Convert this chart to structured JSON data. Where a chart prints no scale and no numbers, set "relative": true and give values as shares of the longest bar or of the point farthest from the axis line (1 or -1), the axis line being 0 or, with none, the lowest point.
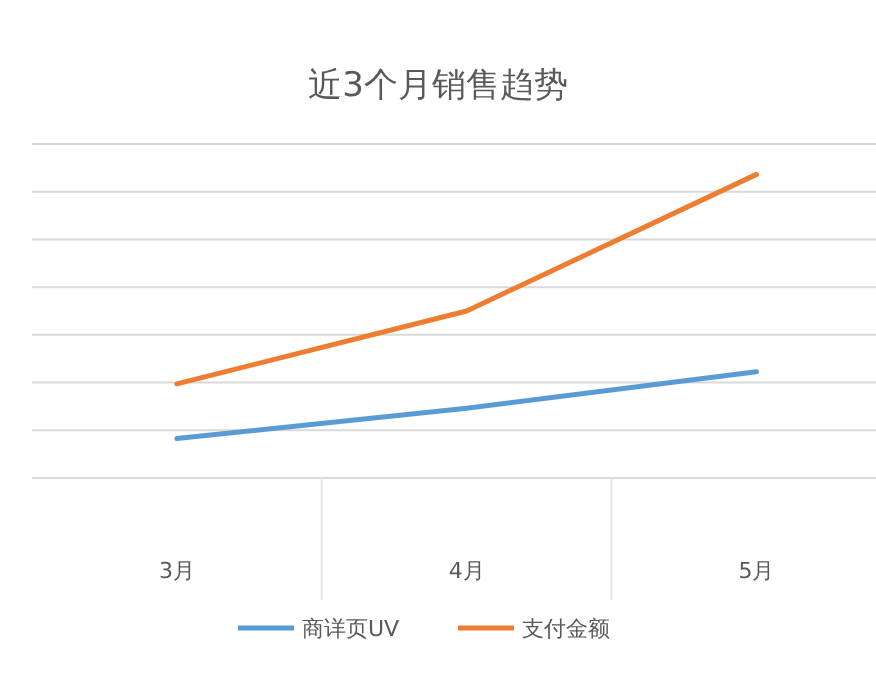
{
  "chart_data": {
    "type": "line",
    "title": "近3个月销售趋势",
    "categories": [
      "3月",
      "4月",
      "5月"
    ],
    "relative": true,
    "grid": "y",
    "legend": "bottom",
    "marker": "none",
    "line_style": "solid",
    "series": [
      {
        "name": "商详页UV",
        "color": "#5b9bd5",
        "values": [
          0.13,
          0.23,
          0.35
        ]
      },
      {
        "name": "支付金额",
        "color": "#ed7d31",
        "values": [
          0.31,
          0.55,
          1
        ]
      }
    ]
  }
}
